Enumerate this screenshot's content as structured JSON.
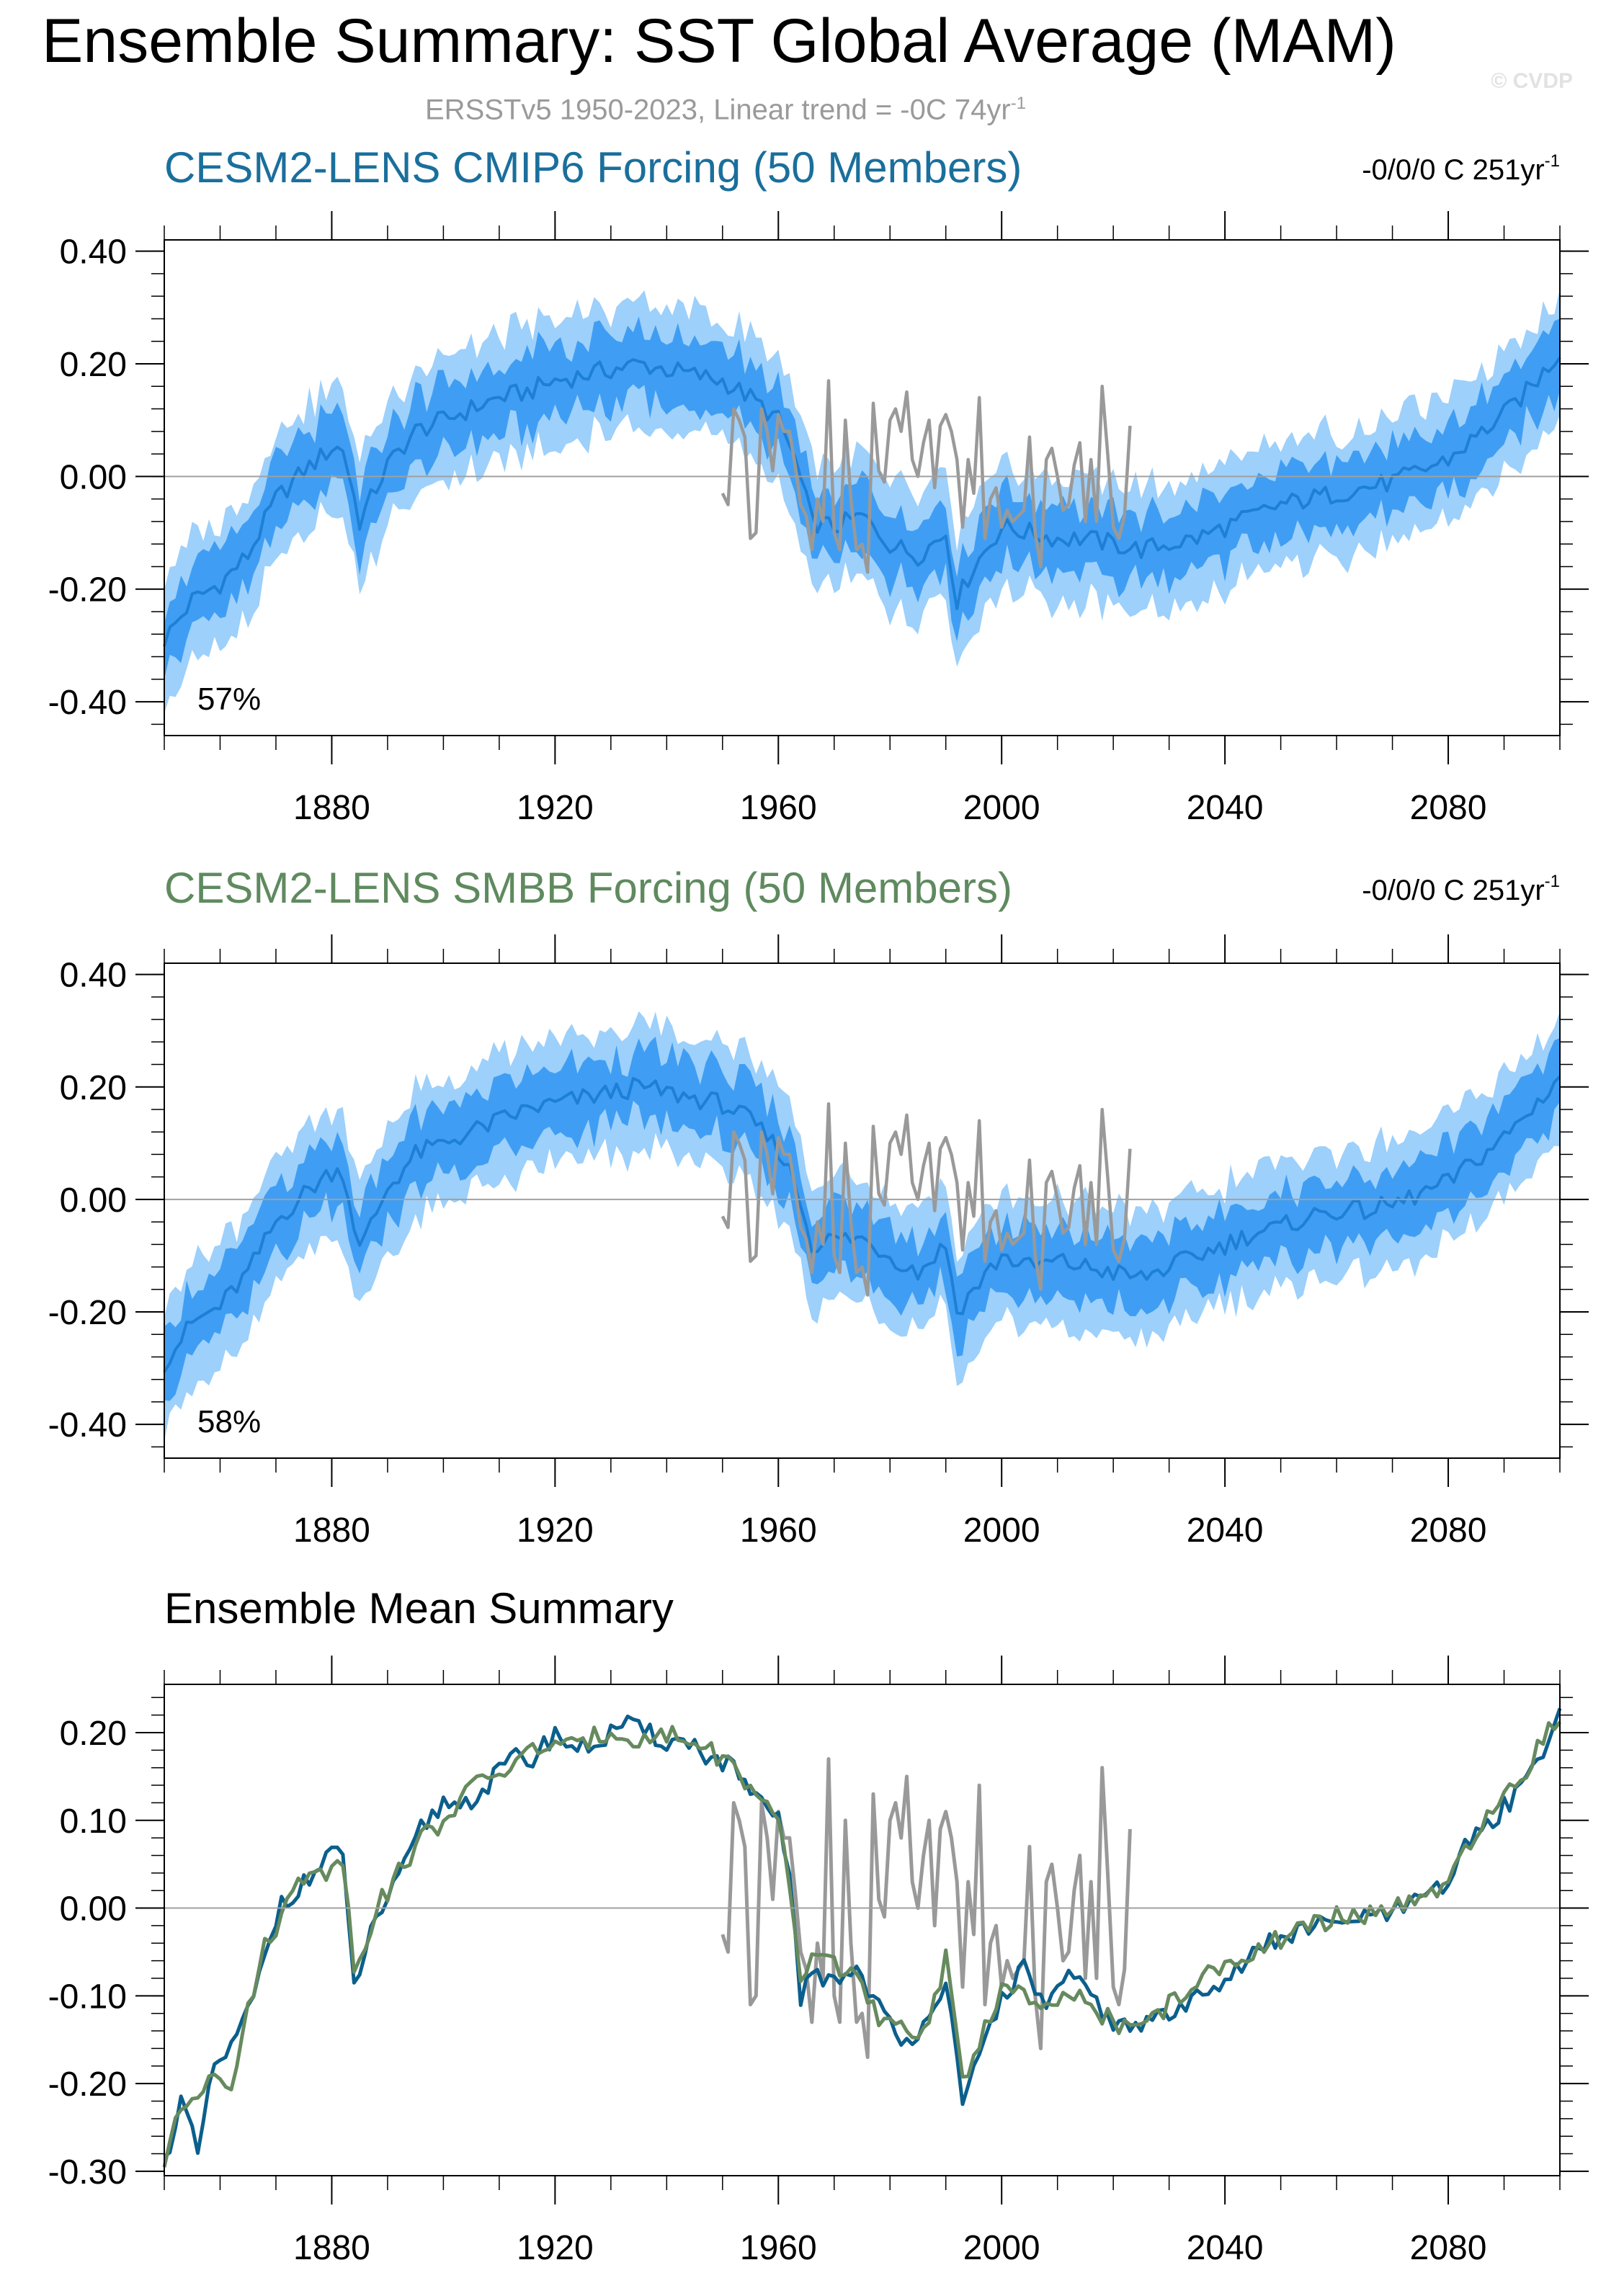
{
  "figure": {
    "title": "Ensemble Summary: SST Global Average (MAM)",
    "subtitle_main": "ERSSTv5 1950-2023, Linear trend = -0C 74yr",
    "subtitle_sup": "-1",
    "copyright": "© CVDP"
  },
  "colors": {
    "cmip6_title": "#1a6f9c",
    "smbb_title": "#5f8a5f",
    "band_outer": "#9dd0fb",
    "band_inner": "#3f9ef3",
    "mean_line": "#1e7fd6",
    "obs": "#999999",
    "cmip6_mean": "#0b5f8c",
    "smbb_mean": "#668a5e"
  },
  "chart_data": [
    {
      "type": "line",
      "title": "CESM2-LENS CMIP6 Forcing (50 Members)",
      "trend_label": "-0/0/0 C 251yr",
      "trend_sup": "-1",
      "percent_label": "57%",
      "xlim": [
        1850,
        2100
      ],
      "ylim": [
        -0.46,
        0.42
      ],
      "yticks": [
        -0.4,
        -0.2,
        0.0,
        0.2,
        0.4
      ],
      "ytick_labels": [
        "-0.40",
        "-0.20",
        "0.00",
        "0.20",
        "0.40"
      ],
      "xticks": [
        1880,
        1920,
        1960,
        2000,
        2040,
        2080
      ],
      "xtick_labels": [
        "1880",
        "1920",
        "1960",
        "2000",
        "2040",
        "2080"
      ],
      "zero_line": true,
      "ensemble_mean": {
        "x": [
          1850,
          1855,
          1860,
          1865,
          1870,
          1875,
          1880,
          1882,
          1885,
          1890,
          1895,
          1900,
          1905,
          1910,
          1915,
          1920,
          1925,
          1930,
          1935,
          1940,
          1945,
          1950,
          1955,
          1960,
          1963,
          1966,
          1970,
          1975,
          1980,
          1985,
          1990,
          1992,
          1995,
          2000,
          2005,
          2010,
          2015,
          2020,
          2025,
          2030,
          2035,
          2040,
          2045,
          2050,
          2055,
          2060,
          2065,
          2070,
          2075,
          2080,
          2085,
          2090,
          2095,
          2100
        ],
        "y": [
          -0.29,
          -0.22,
          -0.19,
          -0.14,
          -0.04,
          0.01,
          0.05,
          0.05,
          -0.08,
          0.02,
          0.08,
          0.1,
          0.12,
          0.14,
          0.15,
          0.17,
          0.18,
          0.19,
          0.2,
          0.19,
          0.18,
          0.17,
          0.14,
          0.1,
          0.03,
          -0.08,
          -0.09,
          -0.07,
          -0.12,
          -0.14,
          -0.1,
          -0.22,
          -0.16,
          -0.09,
          -0.1,
          -0.11,
          -0.11,
          -0.12,
          -0.13,
          -0.12,
          -0.11,
          -0.09,
          -0.07,
          -0.05,
          -0.04,
          -0.03,
          -0.02,
          -0.01,
          0.01,
          0.03,
          0.07,
          0.11,
          0.16,
          0.22
        ],
        "spread_inner": 0.06,
        "spread_outer": 0.11
      },
      "observations": {
        "name": "ERSSTv5",
        "x": [
          1950,
          1951,
          1952,
          1953,
          1954,
          1955,
          1956,
          1957,
          1958,
          1959,
          1960,
          1961,
          1962,
          1963,
          1964,
          1965,
          1966,
          1967,
          1968,
          1969,
          1970,
          1971,
          1972,
          1973,
          1974,
          1975,
          1976,
          1977,
          1978,
          1979,
          1980,
          1981,
          1982,
          1983,
          1984,
          1985,
          1986,
          1987,
          1988,
          1989,
          1990,
          1991,
          1992,
          1993,
          1994,
          1995,
          1996,
          1997,
          1998,
          1999,
          2000,
          2001,
          2002,
          2003,
          2004,
          2005,
          2006,
          2007,
          2008,
          2009,
          2010,
          2011,
          2012,
          2013,
          2014,
          2015,
          2016,
          2017,
          2018,
          2019,
          2020,
          2021,
          2022,
          2023
        ],
        "y": [
          -0.03,
          -0.05,
          0.12,
          0.1,
          0.07,
          -0.11,
          -0.1,
          0.12,
          0.08,
          0.01,
          0.11,
          0.08,
          0.08,
          0.02,
          -0.05,
          -0.07,
          -0.13,
          -0.04,
          -0.08,
          0.17,
          -0.1,
          -0.13,
          0.1,
          -0.04,
          -0.13,
          -0.12,
          -0.17,
          0.13,
          0.01,
          -0.01,
          0.1,
          0.12,
          0.08,
          0.15,
          0.03,
          0.0,
          0.06,
          0.1,
          -0.02,
          0.09,
          0.11,
          0.08,
          0.03,
          -0.09,
          0.03,
          -0.03,
          0.14,
          -0.11,
          -0.04,
          -0.02,
          -0.09,
          -0.06,
          -0.08,
          -0.07,
          -0.06,
          0.07,
          -0.1,
          -0.16,
          0.03,
          0.05,
          0.0,
          -0.06,
          -0.05,
          0.02,
          0.06,
          -0.08,
          0.03,
          -0.08,
          0.16,
          0.04,
          -0.09,
          -0.11,
          -0.07,
          0.09
        ]
      }
    },
    {
      "type": "line",
      "title": "CESM2-LENS SMBB Forcing (50 Members)",
      "trend_label": "-0/0/0 C 251yr",
      "trend_sup": "-1",
      "percent_label": "58%",
      "xlim": [
        1850,
        2100
      ],
      "ylim": [
        -0.46,
        0.42
      ],
      "yticks": [
        -0.4,
        -0.2,
        0.0,
        0.2,
        0.4
      ],
      "ytick_labels": [
        "-0.40",
        "-0.20",
        "0.00",
        "0.20",
        "0.40"
      ],
      "xticks": [
        1880,
        1920,
        1960,
        2000,
        2040,
        2080
      ],
      "xtick_labels": [
        "1880",
        "1920",
        "1960",
        "2000",
        "2040",
        "2080"
      ],
      "zero_line": true,
      "ensemble_mean": {
        "x": [
          1850,
          1855,
          1860,
          1865,
          1870,
          1875,
          1880,
          1882,
          1885,
          1890,
          1895,
          1900,
          1905,
          1910,
          1915,
          1920,
          1925,
          1930,
          1935,
          1940,
          1945,
          1950,
          1955,
          1960,
          1963,
          1966,
          1970,
          1975,
          1980,
          1985,
          1990,
          1992,
          1995,
          2000,
          2005,
          2010,
          2015,
          2020,
          2025,
          2030,
          2035,
          2040,
          2045,
          2050,
          2055,
          2060,
          2065,
          2070,
          2075,
          2080,
          2085,
          2090,
          2095,
          2100
        ],
        "y": [
          -0.29,
          -0.22,
          -0.19,
          -0.13,
          -0.04,
          0.01,
          0.05,
          0.05,
          -0.09,
          0.02,
          0.08,
          0.1,
          0.12,
          0.14,
          0.16,
          0.17,
          0.18,
          0.19,
          0.2,
          0.19,
          0.18,
          0.17,
          0.14,
          0.09,
          0.03,
          -0.08,
          -0.07,
          -0.07,
          -0.1,
          -0.13,
          -0.08,
          -0.2,
          -0.16,
          -0.1,
          -0.12,
          -0.11,
          -0.12,
          -0.13,
          -0.14,
          -0.12,
          -0.1,
          -0.08,
          -0.06,
          -0.05,
          -0.03,
          -0.02,
          -0.02,
          -0.01,
          0.01,
          0.03,
          0.07,
          0.11,
          0.16,
          0.22
        ],
        "spread_inner": 0.06,
        "spread_outer": 0.11
      },
      "observations": {
        "name": "ERSSTv5",
        "x": [
          1950,
          1951,
          1952,
          1953,
          1954,
          1955,
          1956,
          1957,
          1958,
          1959,
          1960,
          1961,
          1962,
          1963,
          1964,
          1965,
          1966,
          1967,
          1968,
          1969,
          1970,
          1971,
          1972,
          1973,
          1974,
          1975,
          1976,
          1977,
          1978,
          1979,
          1980,
          1981,
          1982,
          1983,
          1984,
          1985,
          1986,
          1987,
          1988,
          1989,
          1990,
          1991,
          1992,
          1993,
          1994,
          1995,
          1996,
          1997,
          1998,
          1999,
          2000,
          2001,
          2002,
          2003,
          2004,
          2005,
          2006,
          2007,
          2008,
          2009,
          2010,
          2011,
          2012,
          2013,
          2014,
          2015,
          2016,
          2017,
          2018,
          2019,
          2020,
          2021,
          2022,
          2023
        ],
        "y": [
          -0.03,
          -0.05,
          0.12,
          0.1,
          0.07,
          -0.11,
          -0.1,
          0.12,
          0.08,
          0.01,
          0.11,
          0.08,
          0.08,
          0.02,
          -0.05,
          -0.07,
          -0.13,
          -0.04,
          -0.08,
          0.17,
          -0.1,
          -0.13,
          0.1,
          -0.04,
          -0.13,
          -0.12,
          -0.17,
          0.13,
          0.01,
          -0.01,
          0.1,
          0.12,
          0.08,
          0.15,
          0.03,
          0.0,
          0.06,
          0.1,
          -0.02,
          0.09,
          0.11,
          0.08,
          0.03,
          -0.09,
          0.03,
          -0.03,
          0.14,
          -0.11,
          -0.04,
          -0.02,
          -0.09,
          -0.06,
          -0.08,
          -0.07,
          -0.06,
          0.07,
          -0.1,
          -0.16,
          0.03,
          0.05,
          0.0,
          -0.06,
          -0.05,
          0.02,
          0.06,
          -0.08,
          0.03,
          -0.08,
          0.16,
          0.04,
          -0.09,
          -0.11,
          -0.07,
          0.09
        ]
      }
    },
    {
      "type": "line",
      "title": "Ensemble Mean Summary",
      "xlim": [
        1850,
        2100
      ],
      "ylim": [
        -0.305,
        0.255
      ],
      "yticks": [
        -0.3,
        -0.2,
        -0.1,
        0.0,
        0.1,
        0.2
      ],
      "ytick_labels": [
        "-0.30",
        "-0.20",
        "-0.10",
        "0.00",
        "0.10",
        "0.20"
      ],
      "xticks": [
        1880,
        1920,
        1960,
        2000,
        2040,
        2080
      ],
      "xtick_labels": [
        "1880",
        "1920",
        "1960",
        "2000",
        "2040",
        "2080"
      ],
      "zero_line": true,
      "series": [
        {
          "key": "cmip6",
          "x": [
            1850,
            1853,
            1856,
            1859,
            1862,
            1865,
            1868,
            1871,
            1874,
            1877,
            1880,
            1882,
            1884,
            1888,
            1892,
            1896,
            1900,
            1904,
            1908,
            1912,
            1916,
            1920,
            1924,
            1928,
            1932,
            1936,
            1940,
            1944,
            1948,
            1952,
            1956,
            1960,
            1962,
            1964,
            1966,
            1970,
            1974,
            1978,
            1982,
            1986,
            1990,
            1993,
            1996,
            2000,
            2004,
            2008,
            2012,
            2016,
            2020,
            2024,
            2028,
            2032,
            2036,
            2040,
            2044,
            2048,
            2052,
            2056,
            2060,
            2064,
            2068,
            2072,
            2076,
            2080,
            2084,
            2088,
            2092,
            2096,
            2100
          ],
          "y": [
            -0.29,
            -0.22,
            -0.28,
            -0.18,
            -0.16,
            -0.12,
            -0.06,
            0.01,
            0.02,
            0.04,
            0.07,
            0.05,
            -0.09,
            -0.01,
            0.03,
            0.09,
            0.12,
            0.12,
            0.14,
            0.17,
            0.17,
            0.2,
            0.18,
            0.19,
            0.21,
            0.2,
            0.19,
            0.19,
            0.17,
            0.16,
            0.12,
            0.1,
            0.04,
            -0.1,
            -0.08,
            -0.08,
            -0.07,
            -0.11,
            -0.16,
            -0.13,
            -0.08,
            -0.23,
            -0.17,
            -0.1,
            -0.07,
            -0.11,
            -0.08,
            -0.1,
            -0.13,
            -0.14,
            -0.12,
            -0.12,
            -0.09,
            -0.08,
            -0.06,
            -0.04,
            -0.03,
            -0.02,
            -0.02,
            -0.01,
            -0.01,
            0.0,
            0.01,
            0.03,
            0.08,
            0.1,
            0.13,
            0.17,
            0.22
          ]
        },
        {
          "key": "smbb",
          "x": [
            1850,
            1853,
            1856,
            1859,
            1862,
            1865,
            1868,
            1871,
            1874,
            1877,
            1880,
            1882,
            1884,
            1888,
            1892,
            1896,
            1900,
            1904,
            1908,
            1912,
            1916,
            1920,
            1924,
            1928,
            1932,
            1936,
            1940,
            1944,
            1948,
            1952,
            1956,
            1960,
            1962,
            1964,
            1966,
            1970,
            1974,
            1978,
            1982,
            1986,
            1990,
            1993,
            1996,
            2000,
            2004,
            2008,
            2012,
            2016,
            2020,
            2024,
            2028,
            2032,
            2036,
            2040,
            2044,
            2048,
            2052,
            2056,
            2060,
            2064,
            2068,
            2072,
            2076,
            2080,
            2084,
            2088,
            2092,
            2096,
            2100
          ],
          "y": [
            -0.29,
            -0.23,
            -0.21,
            -0.18,
            -0.2,
            -0.12,
            -0.04,
            -0.01,
            0.03,
            0.05,
            0.04,
            0.06,
            -0.07,
            0.0,
            0.04,
            0.08,
            0.1,
            0.13,
            0.15,
            0.16,
            0.18,
            0.19,
            0.18,
            0.2,
            0.2,
            0.19,
            0.2,
            0.19,
            0.18,
            0.16,
            0.13,
            0.09,
            0.03,
            -0.09,
            -0.05,
            -0.06,
            -0.08,
            -0.13,
            -0.14,
            -0.14,
            -0.06,
            -0.2,
            -0.15,
            -0.09,
            -0.1,
            -0.12,
            -0.1,
            -0.11,
            -0.13,
            -0.14,
            -0.12,
            -0.1,
            -0.08,
            -0.07,
            -0.05,
            -0.04,
            -0.03,
            -0.02,
            -0.01,
            -0.01,
            0.0,
            0.0,
            0.01,
            0.03,
            0.07,
            0.11,
            0.14,
            0.18,
            0.22
          ]
        },
        {
          "key": "obs",
          "x": [
            1950,
            1951,
            1952,
            1953,
            1954,
            1955,
            1956,
            1957,
            1958,
            1959,
            1960,
            1961,
            1962,
            1963,
            1964,
            1965,
            1966,
            1967,
            1968,
            1969,
            1970,
            1971,
            1972,
            1973,
            1974,
            1975,
            1976,
            1977,
            1978,
            1979,
            1980,
            1981,
            1982,
            1983,
            1984,
            1985,
            1986,
            1987,
            1988,
            1989,
            1990,
            1991,
            1992,
            1993,
            1994,
            1995,
            1996,
            1997,
            1998,
            1999,
            2000,
            2001,
            2002,
            2003,
            2004,
            2005,
            2006,
            2007,
            2008,
            2009,
            2010,
            2011,
            2012,
            2013,
            2014,
            2015,
            2016,
            2017,
            2018,
            2019,
            2020,
            2021,
            2022,
            2023
          ],
          "y": [
            -0.03,
            -0.05,
            0.12,
            0.1,
            0.07,
            -0.11,
            -0.1,
            0.12,
            0.08,
            0.01,
            0.11,
            0.08,
            0.08,
            0.02,
            -0.05,
            -0.07,
            -0.13,
            -0.04,
            -0.08,
            0.17,
            -0.1,
            -0.13,
            0.1,
            -0.04,
            -0.13,
            -0.12,
            -0.17,
            0.13,
            0.01,
            -0.01,
            0.1,
            0.12,
            0.08,
            0.15,
            0.03,
            0.0,
            0.06,
            0.1,
            -0.02,
            0.09,
            0.11,
            0.08,
            0.03,
            -0.09,
            0.03,
            -0.03,
            0.14,
            -0.11,
            -0.04,
            -0.02,
            -0.09,
            -0.06,
            -0.08,
            -0.07,
            -0.06,
            0.07,
            -0.1,
            -0.16,
            0.03,
            0.05,
            0.0,
            -0.06,
            -0.05,
            0.02,
            0.06,
            -0.08,
            0.03,
            -0.08,
            0.16,
            0.04,
            -0.09,
            -0.11,
            -0.07,
            0.09
          ]
        }
      ]
    }
  ]
}
